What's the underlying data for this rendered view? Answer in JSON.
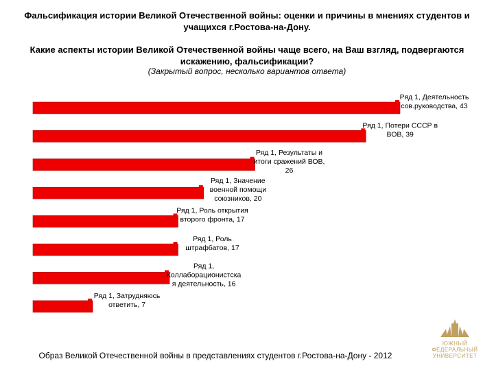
{
  "header": {
    "title": "Фальсификация истории Великой Отечественной войны: оценки и причины в мнениях студентов и учащихся г.Ростова-на-Дону.",
    "question": "Какие аспекты истории Великой Отечественной войны чаще всего, на Ваш взгляд, подвергаются искажению, фальсификации?",
    "subquestion": "(Закрытый вопрос, несколько вариантов ответа)"
  },
  "footer": {
    "text": "Образ Великой Отечественной войны в представлениях студентов г.Ростова-на-Дону - 2012"
  },
  "logo": {
    "line1": "ЮЖНЫЙ",
    "line2": "ФЕДЕРАЛЬНЫЙ",
    "line3": "УНИВЕРСИТЕТ"
  },
  "colors": {
    "bar": "#ee0000",
    "bar_edge": "#b00000",
    "logo": "#c0a060"
  },
  "chart_data": {
    "type": "bar",
    "orientation": "horizontal",
    "series": [
      {
        "name": "Ряд 1",
        "values": [
          43,
          39,
          26,
          20,
          17,
          17,
          16,
          7
        ]
      }
    ],
    "categories": [
      "Деятельность сов.руководства",
      "Потери СССР в ВОВ",
      "Результаты и итоги сражений ВОВ",
      "Значение военной помощи союзников",
      "Роль открытия второго фронта",
      "Роль штрафбатов",
      "Коллаборационистская деятельность",
      "Затрудняюсь ответить"
    ],
    "data_labels": [
      [
        "Ряд 1, Деятельность",
        "сов.руководства, 43"
      ],
      [
        "Ряд 1, Потери СССР в",
        "ВОВ, 39"
      ],
      [
        "Ряд 1, Результаты и",
        "итоги сражений ВОВ,",
        "26"
      ],
      [
        "Ряд 1, Значение",
        "военной помощи",
        "союзников, 20"
      ],
      [
        "Ряд 1, Роль открытия",
        "второго фронта, 17"
      ],
      [
        "Ряд 1, Роль",
        "штрафбатов, 17"
      ],
      [
        "Ряд 1,",
        "Коллаборационистска",
        "я деятельность, 16"
      ],
      [
        "Ряд 1, Затрудняюсь",
        "ответить, 7"
      ]
    ],
    "xlim": [
      0,
      43
    ],
    "legend": "none",
    "grid": false,
    "title": "",
    "xlabel": "",
    "ylabel": ""
  }
}
